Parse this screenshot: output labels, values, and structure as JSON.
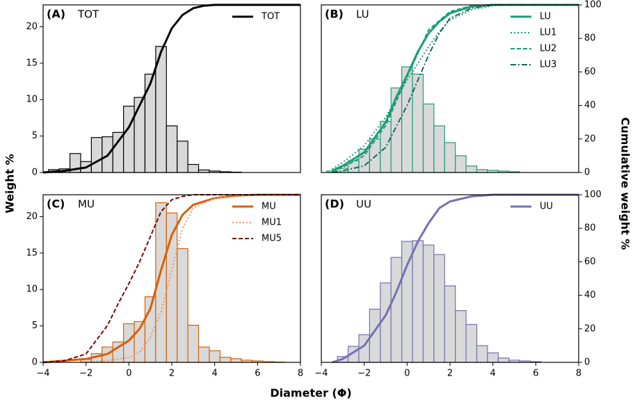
{
  "chart_data": [
    {
      "type": "histogram",
      "panel_label": "(A)",
      "title": "TOT",
      "fill": "#d9d9d9",
      "edgecolor": "#000000",
      "legend": "upper right",
      "bins": [
        -3.75,
        -3.25,
        -2.75,
        -2.25,
        -1.75,
        -1.25,
        -0.75,
        -0.25,
        0.25,
        0.75,
        1.25,
        1.75,
        2.25,
        2.75,
        3.25,
        3.75,
        4.25,
        4.75,
        5.25
      ],
      "counts": [
        0.4,
        0.5,
        2.6,
        1.5,
        4.8,
        4.9,
        5.5,
        9.1,
        10.3,
        13.5,
        17.3,
        6.4,
        4.3,
        1.1,
        0.35,
        0.2,
        0.1,
        0.05
      ],
      "xlim": [
        -4,
        8
      ],
      "ylim": [
        0,
        23
      ],
      "y2lim": [
        0,
        100
      ],
      "yticks": [
        0,
        5,
        10,
        15,
        20
      ],
      "series": [
        {
          "name": "TOT",
          "color": "#000000",
          "style": "solid",
          "axis": "y2",
          "x": [
            -4,
            -3,
            -2,
            -1,
            0,
            0.5,
            1,
            1.5,
            2,
            2.5,
            3,
            3.5,
            4,
            8
          ],
          "values": [
            0,
            1,
            3,
            10,
            27,
            40,
            53,
            72,
            86,
            94,
            98,
            99.5,
            100,
            100
          ]
        }
      ]
    },
    {
      "type": "histogram",
      "panel_label": "(B)",
      "title": "LU",
      "fill": "#d9d9d9",
      "edgecolor": "#1b9e77",
      "legend": "upper right",
      "bins": [
        -3.75,
        -3.25,
        -2.75,
        -2.25,
        -1.75,
        -1.25,
        -0.75,
        -0.25,
        0.25,
        0.75,
        1.25,
        1.75,
        2.25,
        2.75,
        3.25,
        3.75,
        4.25,
        4.75,
        5.25
      ],
      "counts": [
        0.2,
        0.6,
        1.6,
        3.2,
        4.6,
        7.0,
        11.6,
        14.5,
        13.5,
        9.4,
        6.4,
        4.1,
        2.3,
        0.9,
        0.4,
        0.3,
        0.2,
        0.1
      ],
      "xlim": [
        -4,
        8
      ],
      "ylim": [
        0,
        23
      ],
      "y2lim": [
        0,
        100
      ],
      "y2ticks": [
        0,
        20,
        40,
        60,
        80,
        100
      ],
      "series": [
        {
          "name": "LU",
          "color": "#1b9e77",
          "style": "solid",
          "axis": "y2",
          "x": [
            -3.5,
            -3,
            -2,
            -1,
            -0.5,
            0,
            0.5,
            1,
            1.5,
            2,
            3,
            4,
            8
          ],
          "values": [
            1,
            4,
            12,
            30,
            45,
            58,
            72,
            83,
            90,
            95,
            99,
            100,
            100
          ]
        },
        {
          "name": "LU1",
          "color": "#1b9e77",
          "style": "dotted",
          "axis": "y2",
          "x": [
            -3.5,
            -3,
            -2,
            -1,
            0,
            0.5,
            1,
            1.5,
            2,
            3,
            4,
            5,
            8
          ],
          "values": [
            2,
            6,
            16,
            33,
            55,
            65,
            75,
            84,
            91,
            97,
            99.5,
            100,
            100
          ]
        },
        {
          "name": "LU2",
          "color": "#1b9e77",
          "style": "dashed",
          "axis": "y2",
          "x": [
            -3.5,
            -3,
            -2,
            -1,
            0,
            1,
            2,
            3,
            4,
            8
          ],
          "values": [
            1,
            3,
            10,
            28,
            57,
            85,
            96,
            99.5,
            100,
            100
          ]
        },
        {
          "name": "LU3",
          "color": "#17695a",
          "style": "dashdot",
          "axis": "y2",
          "x": [
            -3.5,
            -3,
            -2,
            -1,
            0,
            0.5,
            1,
            1.5,
            2,
            3,
            4,
            8
          ],
          "values": [
            0,
            1,
            4,
            15,
            40,
            55,
            70,
            83,
            92,
            98,
            100,
            100
          ]
        }
      ]
    },
    {
      "type": "histogram",
      "panel_label": "(C)",
      "title": "MU",
      "fill": "#d9d9d9",
      "edgecolor": "#d95f02",
      "legend": "upper right",
      "bins": [
        -2.25,
        -1.75,
        -1.25,
        -0.75,
        -0.25,
        0.25,
        0.75,
        1.25,
        1.75,
        2.25,
        2.75,
        3.25,
        3.75,
        4.25,
        4.75,
        5.25,
        5.75,
        6.25,
        6.75,
        7.25
      ],
      "counts": [
        0.4,
        1.2,
        2.1,
        2.8,
        5.3,
        5.6,
        9.0,
        21.9,
        20.5,
        15.6,
        5.1,
        2.1,
        1.6,
        0.7,
        0.5,
        0.3,
        0.2,
        0.1,
        0.05
      ],
      "xlim": [
        -4,
        8
      ],
      "ylim": [
        0,
        23
      ],
      "y2lim": [
        0,
        100
      ],
      "yticks": [
        0,
        5,
        10,
        15,
        20
      ],
      "xticks": [
        {
          "value": -4,
          "label": "−4"
        },
        {
          "value": -2,
          "label": "−2"
        },
        0,
        2,
        4,
        6,
        8
      ],
      "series": [
        {
          "name": "MU",
          "color": "#d95f02",
          "style": "solid",
          "axis": "y2",
          "x": [
            -4,
            -2,
            -1,
            0,
            0.5,
            1,
            1.5,
            2,
            2.5,
            3,
            4,
            5,
            6,
            8
          ],
          "values": [
            0,
            2,
            5,
            13,
            20,
            32,
            55,
            76,
            88,
            94,
            98,
            99.5,
            100,
            100
          ]
        },
        {
          "name": "MU1",
          "color": "#f0906a",
          "style": "dotted",
          "axis": "y2",
          "x": [
            -2,
            -1,
            0,
            0.5,
            1,
            1.5,
            2,
            2.5,
            3,
            4,
            5,
            8
          ],
          "values": [
            0,
            1,
            3,
            6,
            15,
            30,
            55,
            80,
            92,
            98,
            99.5,
            100
          ]
        },
        {
          "name": "MU5",
          "color": "#7f0000",
          "style": "dashed",
          "axis": "y2",
          "x": [
            -4,
            -3,
            -2,
            -1,
            -0.5,
            0,
            0.5,
            1,
            1.5,
            2,
            2.5,
            3,
            8
          ],
          "values": [
            0,
            1,
            5,
            22,
            35,
            47,
            60,
            75,
            90,
            97,
            99,
            100,
            100
          ]
        }
      ]
    },
    {
      "type": "histogram",
      "panel_label": "(D)",
      "title": "UU",
      "fill": "#d9d9d9",
      "edgecolor": "#7570b3",
      "legend": "upper right",
      "bins": [
        -3.25,
        -2.75,
        -2.25,
        -1.75,
        -1.25,
        -0.75,
        -0.25,
        0.25,
        0.75,
        1.25,
        1.75,
        2.25,
        2.75,
        3.25,
        3.75,
        4.25,
        4.75,
        5.25,
        5.75,
        6.25
      ],
      "counts": [
        0.8,
        2.2,
        3.8,
        7.3,
        10.9,
        14.4,
        16.6,
        16.7,
        16.1,
        14.8,
        10.5,
        7.1,
        5.2,
        2.3,
        1.3,
        0.6,
        0.3,
        0.2,
        0.1
      ],
      "xlim": [
        -4,
        8
      ],
      "ylim": [
        0,
        23
      ],
      "y2lim": [
        0,
        100
      ],
      "y2ticks": [
        0,
        20,
        40,
        60,
        80,
        100
      ],
      "xticks": [
        {
          "value": -4,
          "label": "−4"
        },
        {
          "value": -2,
          "label": "−2"
        },
        0,
        2,
        4,
        6,
        8
      ],
      "series": [
        {
          "name": "UU",
          "color": "#7570b3",
          "style": "solid",
          "axis": "y2",
          "x": [
            -3.5,
            -3,
            -2,
            -1,
            -0.5,
            0,
            0.5,
            1,
            1.5,
            2,
            3,
            4,
            8
          ],
          "values": [
            0,
            2,
            10,
            28,
            42,
            58,
            72,
            83,
            92,
            96,
            99,
            100,
            100
          ]
        }
      ]
    }
  ],
  "ylabel": "Weight %",
  "y2label": "Cumulative weight %",
  "xlabel": "Diameter (Φ)"
}
